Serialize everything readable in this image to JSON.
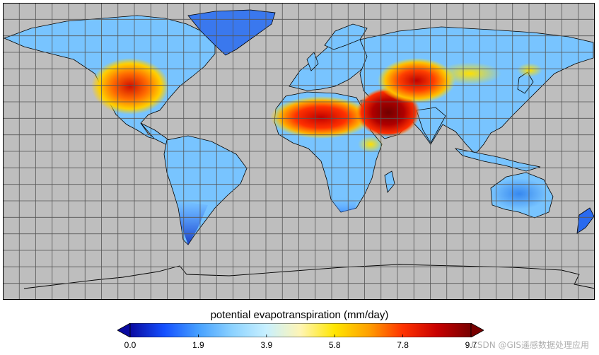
{
  "map": {
    "ocean_color": "#bebebe",
    "grid_color": "#555555",
    "grid_lon_step": 10,
    "grid_lat_step": 10,
    "lon_range": [
      -180,
      180
    ],
    "lat_range": [
      -90,
      90
    ],
    "coastline_color": "#000000"
  },
  "colorbar": {
    "title": "potential evapotranspiration (mm/day)",
    "ticks": [
      "0.0",
      "1.9",
      "3.9",
      "5.8",
      "7.8",
      "9.7"
    ],
    "colormap": [
      "#0a0aa0",
      "#1450ff",
      "#46a0ff",
      "#8cd2ff",
      "#c8f0ff",
      "#fff5b4",
      "#ffe600",
      "#ffa000",
      "#ff3200",
      "#c80000",
      "#780000"
    ],
    "extend": "both"
  },
  "watermark": "CSDN @GIS遥感数据处理应用"
}
